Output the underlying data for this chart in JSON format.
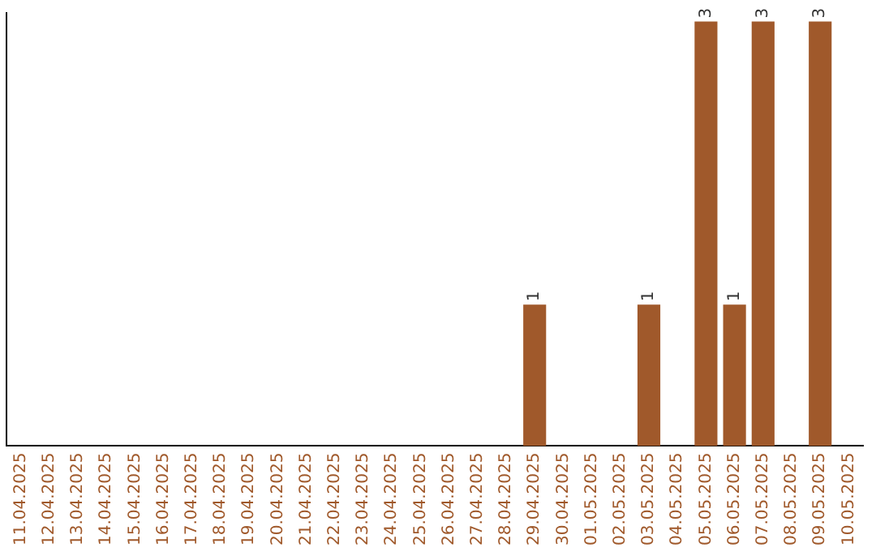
{
  "chart_data": {
    "type": "bar",
    "categories": [
      "11.04.2025",
      "12.04.2025",
      "13.04.2025",
      "14.04.2025",
      "15.04.2025",
      "16.04.2025",
      "17.04.2025",
      "18.04.2025",
      "19.04.2025",
      "20.04.2025",
      "21.04.2025",
      "22.04.2025",
      "23.04.2025",
      "24.04.2025",
      "25.04.2025",
      "26.04.2025",
      "27.04.2025",
      "28.04.2025",
      "29.04.2025",
      "30.04.2025",
      "01.05.2025",
      "02.05.2025",
      "03.05.2025",
      "04.05.2025",
      "05.05.2025",
      "06.05.2025",
      "07.05.2025",
      "08.05.2025",
      "09.05.2025",
      "10.05.2025"
    ],
    "values": [
      null,
      null,
      null,
      null,
      null,
      null,
      null,
      null,
      null,
      null,
      null,
      null,
      null,
      null,
      null,
      null,
      null,
      null,
      1,
      null,
      null,
      null,
      1,
      null,
      3,
      1,
      3,
      null,
      3,
      null
    ],
    "data_labels": true,
    "color": "#a0592b",
    "ylim": [
      0,
      3.06
    ],
    "grid": false,
    "legend": false,
    "tick_labels": "x"
  }
}
